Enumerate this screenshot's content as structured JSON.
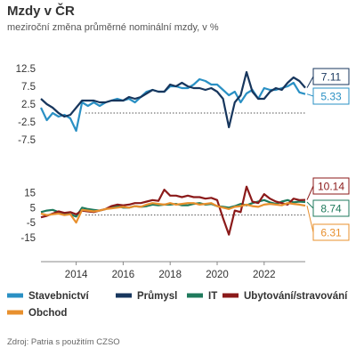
{
  "header": {
    "title": "Mzdy v ČR",
    "subtitle": "meziroční změna průměrné nominální mzdy, v %"
  },
  "footer": {
    "source": "Zdroj: Patria s použitím CZSO"
  },
  "chart_data": [
    {
      "type": "line",
      "title": "",
      "xlabel": "",
      "ylabel": "",
      "xlim": [
        "2012Q3",
        "2023Q4"
      ],
      "ylim": [
        -10,
        15
      ],
      "yticks": [
        12.5,
        7.5,
        2.5,
        -2.5,
        -7.5
      ],
      "ytick_labels": [
        "12.5",
        "7.5",
        "2.5",
        "-2.5",
        "-7.5"
      ],
      "zero_line": "dotted",
      "x": [
        "2012Q3",
        "2012Q4",
        "2013Q1",
        "2013Q2",
        "2013Q3",
        "2013Q4",
        "2014Q1",
        "2014Q2",
        "2014Q3",
        "2014Q4",
        "2015Q1",
        "2015Q2",
        "2015Q3",
        "2015Q4",
        "2016Q1",
        "2016Q2",
        "2016Q3",
        "2016Q4",
        "2017Q1",
        "2017Q2",
        "2017Q3",
        "2017Q4",
        "2018Q1",
        "2018Q2",
        "2018Q3",
        "2018Q4",
        "2019Q1",
        "2019Q2",
        "2019Q3",
        "2019Q4",
        "2020Q1",
        "2020Q2",
        "2020Q3",
        "2020Q4",
        "2021Q1",
        "2021Q2",
        "2021Q3",
        "2021Q4",
        "2022Q1",
        "2022Q2",
        "2022Q3",
        "2022Q4",
        "2023Q1",
        "2023Q2",
        "2023Q3",
        "2023Q4"
      ],
      "series": [
        {
          "name": "Stavebnictví",
          "color": "#2a90c4",
          "end_label": "5.33",
          "values": [
            1.5,
            -2.0,
            0.0,
            -1.0,
            -0.5,
            -1.5,
            -5.0,
            3.0,
            2.0,
            3.0,
            2.0,
            3.0,
            3.5,
            4.0,
            3.5,
            4.0,
            3.0,
            4.5,
            6.0,
            6.5,
            6.0,
            6.0,
            7.5,
            7.5,
            7.0,
            7.0,
            8.0,
            9.5,
            9.0,
            8.0,
            8.0,
            6.5,
            5.0,
            6.0,
            3.0,
            5.5,
            6.5,
            4.0,
            7.0,
            6.5,
            6.5,
            7.0,
            7.5,
            8.5,
            5.8,
            5.33
          ]
        },
        {
          "name": "Průmysl",
          "color": "#17365d",
          "end_label": "7.11",
          "values": [
            4.0,
            2.5,
            1.5,
            0.0,
            -1.0,
            -0.5,
            1.5,
            3.5,
            3.5,
            3.5,
            3.0,
            3.0,
            3.5,
            3.5,
            3.5,
            4.5,
            4.0,
            4.5,
            5.5,
            6.5,
            6.0,
            6.0,
            8.0,
            7.5,
            8.5,
            7.5,
            7.0,
            7.0,
            6.5,
            7.0,
            6.0,
            4.0,
            -4.0,
            3.0,
            5.0,
            11.5,
            6.0,
            4.0,
            4.0,
            6.0,
            7.0,
            6.5,
            8.5,
            10.0,
            9.0,
            7.11
          ]
        }
      ]
    },
    {
      "type": "line",
      "title": "",
      "xlabel": "",
      "ylabel": "",
      "xlim": [
        "2012Q3",
        "2023Q4"
      ],
      "ylim": [
        -18,
        20
      ],
      "yticks": [
        15,
        5,
        -5,
        -15
      ],
      "ytick_labels": [
        "15",
        "5",
        "-5",
        "-15"
      ],
      "xticks": [
        "2014",
        "2016",
        "2018",
        "2020",
        "2022"
      ],
      "zero_line": "dotted",
      "x": [
        "2012Q3",
        "2012Q4",
        "2013Q1",
        "2013Q2",
        "2013Q3",
        "2013Q4",
        "2014Q1",
        "2014Q2",
        "2014Q3",
        "2014Q4",
        "2015Q1",
        "2015Q2",
        "2015Q3",
        "2015Q4",
        "2016Q1",
        "2016Q2",
        "2016Q3",
        "2016Q4",
        "2017Q1",
        "2017Q2",
        "2017Q3",
        "2017Q4",
        "2018Q1",
        "2018Q2",
        "2018Q3",
        "2018Q4",
        "2019Q1",
        "2019Q2",
        "2019Q3",
        "2019Q4",
        "2020Q1",
        "2020Q2",
        "2020Q3",
        "2020Q4",
        "2021Q1",
        "2021Q2",
        "2021Q3",
        "2021Q4",
        "2022Q1",
        "2022Q2",
        "2022Q3",
        "2022Q4",
        "2023Q1",
        "2023Q2",
        "2023Q3",
        "2023Q4"
      ],
      "series": [
        {
          "name": "IT",
          "color": "#1f7a5c",
          "end_label": "8.74",
          "values": [
            2.0,
            3.0,
            3.5,
            2.0,
            1.0,
            0.5,
            -1.0,
            5.0,
            4.0,
            3.5,
            3.0,
            4.0,
            5.5,
            6.0,
            5.0,
            5.0,
            6.0,
            5.5,
            6.0,
            7.0,
            6.5,
            7.0,
            7.0,
            7.5,
            6.5,
            6.5,
            7.5,
            8.0,
            7.0,
            7.5,
            6.0,
            5.5,
            5.0,
            6.0,
            7.5,
            6.5,
            8.0,
            9.0,
            10.0,
            8.5,
            7.5,
            9.0,
            10.0,
            8.5,
            9.0,
            8.74
          ]
        },
        {
          "name": "Ubytování/stravování",
          "color": "#8b1a1a",
          "end_label": "10.14",
          "values": [
            -1.5,
            -0.5,
            1.0,
            2.5,
            1.5,
            2.0,
            0.5,
            3.0,
            2.5,
            2.0,
            3.0,
            4.0,
            6.0,
            7.0,
            6.5,
            7.0,
            8.0,
            8.0,
            9.0,
            10.0,
            9.5,
            17.0,
            13.0,
            13.0,
            12.0,
            13.0,
            12.0,
            12.0,
            11.0,
            11.5,
            10.0,
            -2.0,
            -13.0,
            3.0,
            2.0,
            19.0,
            9.0,
            8.0,
            14.0,
            11.0,
            9.0,
            8.0,
            7.0,
            11.0,
            10.0,
            10.14
          ]
        },
        {
          "name": "Obchod",
          "color": "#e8902e",
          "end_label": "6.31",
          "values": [
            1.0,
            0.0,
            0.5,
            1.0,
            0.0,
            0.5,
            -5.0,
            3.5,
            3.0,
            2.5,
            3.0,
            4.0,
            4.5,
            5.0,
            5.5,
            5.0,
            6.0,
            5.5,
            7.0,
            8.0,
            7.5,
            7.0,
            8.0,
            7.0,
            7.5,
            8.0,
            8.0,
            7.0,
            7.5,
            8.0,
            6.0,
            5.0,
            4.0,
            5.5,
            6.0,
            7.0,
            6.0,
            5.5,
            7.0,
            7.5,
            7.0,
            6.5,
            8.0,
            7.5,
            7.0,
            6.31
          ]
        }
      ]
    }
  ],
  "legend": {
    "placement": "bottom",
    "items": [
      {
        "label": "Stavebnictví",
        "color": "#2a90c4"
      },
      {
        "label": "Průmysl",
        "color": "#17365d"
      },
      {
        "label": "IT",
        "color": "#1f7a5c"
      },
      {
        "label": "Ubytování/stravování",
        "color": "#8b1a1a"
      },
      {
        "label": "Obchod",
        "color": "#e8902e"
      }
    ]
  }
}
